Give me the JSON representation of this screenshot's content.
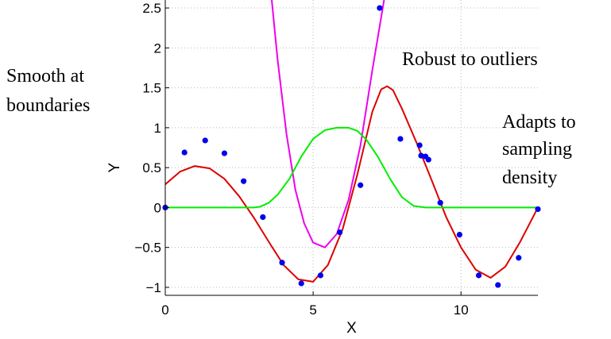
{
  "chart_data": {
    "type": "scatter",
    "xlabel": "X",
    "ylabel": "Y",
    "xlim": [
      0,
      12.6
    ],
    "ylim": [
      -1.1,
      2.6
    ],
    "xticks": [
      0,
      5,
      10
    ],
    "xtick_labels": [
      "0",
      "5",
      "10"
    ],
    "yticks": [
      -1,
      -0.5,
      0,
      0.5,
      1,
      1.5,
      2,
      2.5
    ],
    "ytick_labels": [
      "−1",
      "−0.5",
      "0",
      "0.5",
      "1",
      "1.5",
      "2",
      "2.5"
    ],
    "grid": true,
    "grid_style": "dotted",
    "points": {
      "color": "#0000ee",
      "x": [
        0,
        0.65,
        1.35,
        2.0,
        2.65,
        3.3,
        3.95,
        4.6,
        5.25,
        5.9,
        6.6,
        7.25,
        7.95,
        8.6,
        8.65,
        8.8,
        8.9,
        9.3,
        9.95,
        10.6,
        11.25,
        11.95,
        12.6
      ],
      "y": [
        0.0,
        0.69,
        0.84,
        0.68,
        0.33,
        -0.12,
        -0.69,
        -0.95,
        -0.85,
        -0.31,
        0.28,
        2.5,
        0.86,
        0.78,
        0.65,
        0.64,
        0.6,
        0.06,
        -0.34,
        -0.85,
        -0.97,
        -0.63,
        -0.02
      ]
    },
    "series": [
      {
        "color": "#dd0000",
        "x": [
          0,
          0.5,
          1.0,
          1.5,
          2.0,
          2.5,
          3.0,
          3.5,
          4.0,
          4.5,
          5.0,
          5.5,
          6.0,
          6.5,
          7.0,
          7.3,
          7.5,
          7.7,
          8.0,
          8.5,
          9.0,
          9.5,
          10.0,
          10.5,
          11.0,
          11.5,
          12.0,
          12.6
        ],
        "y": [
          0.29,
          0.45,
          0.52,
          0.49,
          0.36,
          0.14,
          -0.13,
          -0.43,
          -0.72,
          -0.9,
          -0.93,
          -0.72,
          -0.27,
          0.42,
          1.2,
          1.48,
          1.52,
          1.47,
          1.24,
          0.81,
          0.35,
          -0.12,
          -0.5,
          -0.78,
          -0.88,
          -0.74,
          -0.43,
          0.0
        ]
      },
      {
        "color": "#ee00ee",
        "x": [
          3.6,
          3.8,
          4.1,
          4.4,
          4.7,
          5.0,
          5.4,
          5.8,
          6.2,
          6.6,
          7.0,
          7.4
        ],
        "y": [
          2.6,
          1.85,
          0.92,
          0.22,
          -0.2,
          -0.44,
          -0.5,
          -0.33,
          0.1,
          0.78,
          1.72,
          2.6
        ]
      },
      {
        "color": "#00ee00",
        "x": [
          0,
          3.0,
          3.2,
          3.5,
          3.8,
          4.2,
          4.6,
          5.0,
          5.4,
          5.8,
          6.2,
          6.5,
          6.8,
          7.2,
          7.6,
          8.0,
          8.4,
          8.6,
          8.8,
          12.6
        ],
        "y": [
          0,
          0,
          0.01,
          0.06,
          0.16,
          0.36,
          0.64,
          0.86,
          0.97,
          1.0,
          1.0,
          0.96,
          0.85,
          0.63,
          0.36,
          0.13,
          0.02,
          0.01,
          0,
          0
        ]
      }
    ],
    "annotations": [
      {
        "lines": [
          "Smooth at",
          "boundaries"
        ]
      },
      {
        "lines": [
          "Robust to outliers"
        ]
      },
      {
        "lines": [
          "Adapts to",
          "sampling",
          "density"
        ]
      }
    ]
  }
}
